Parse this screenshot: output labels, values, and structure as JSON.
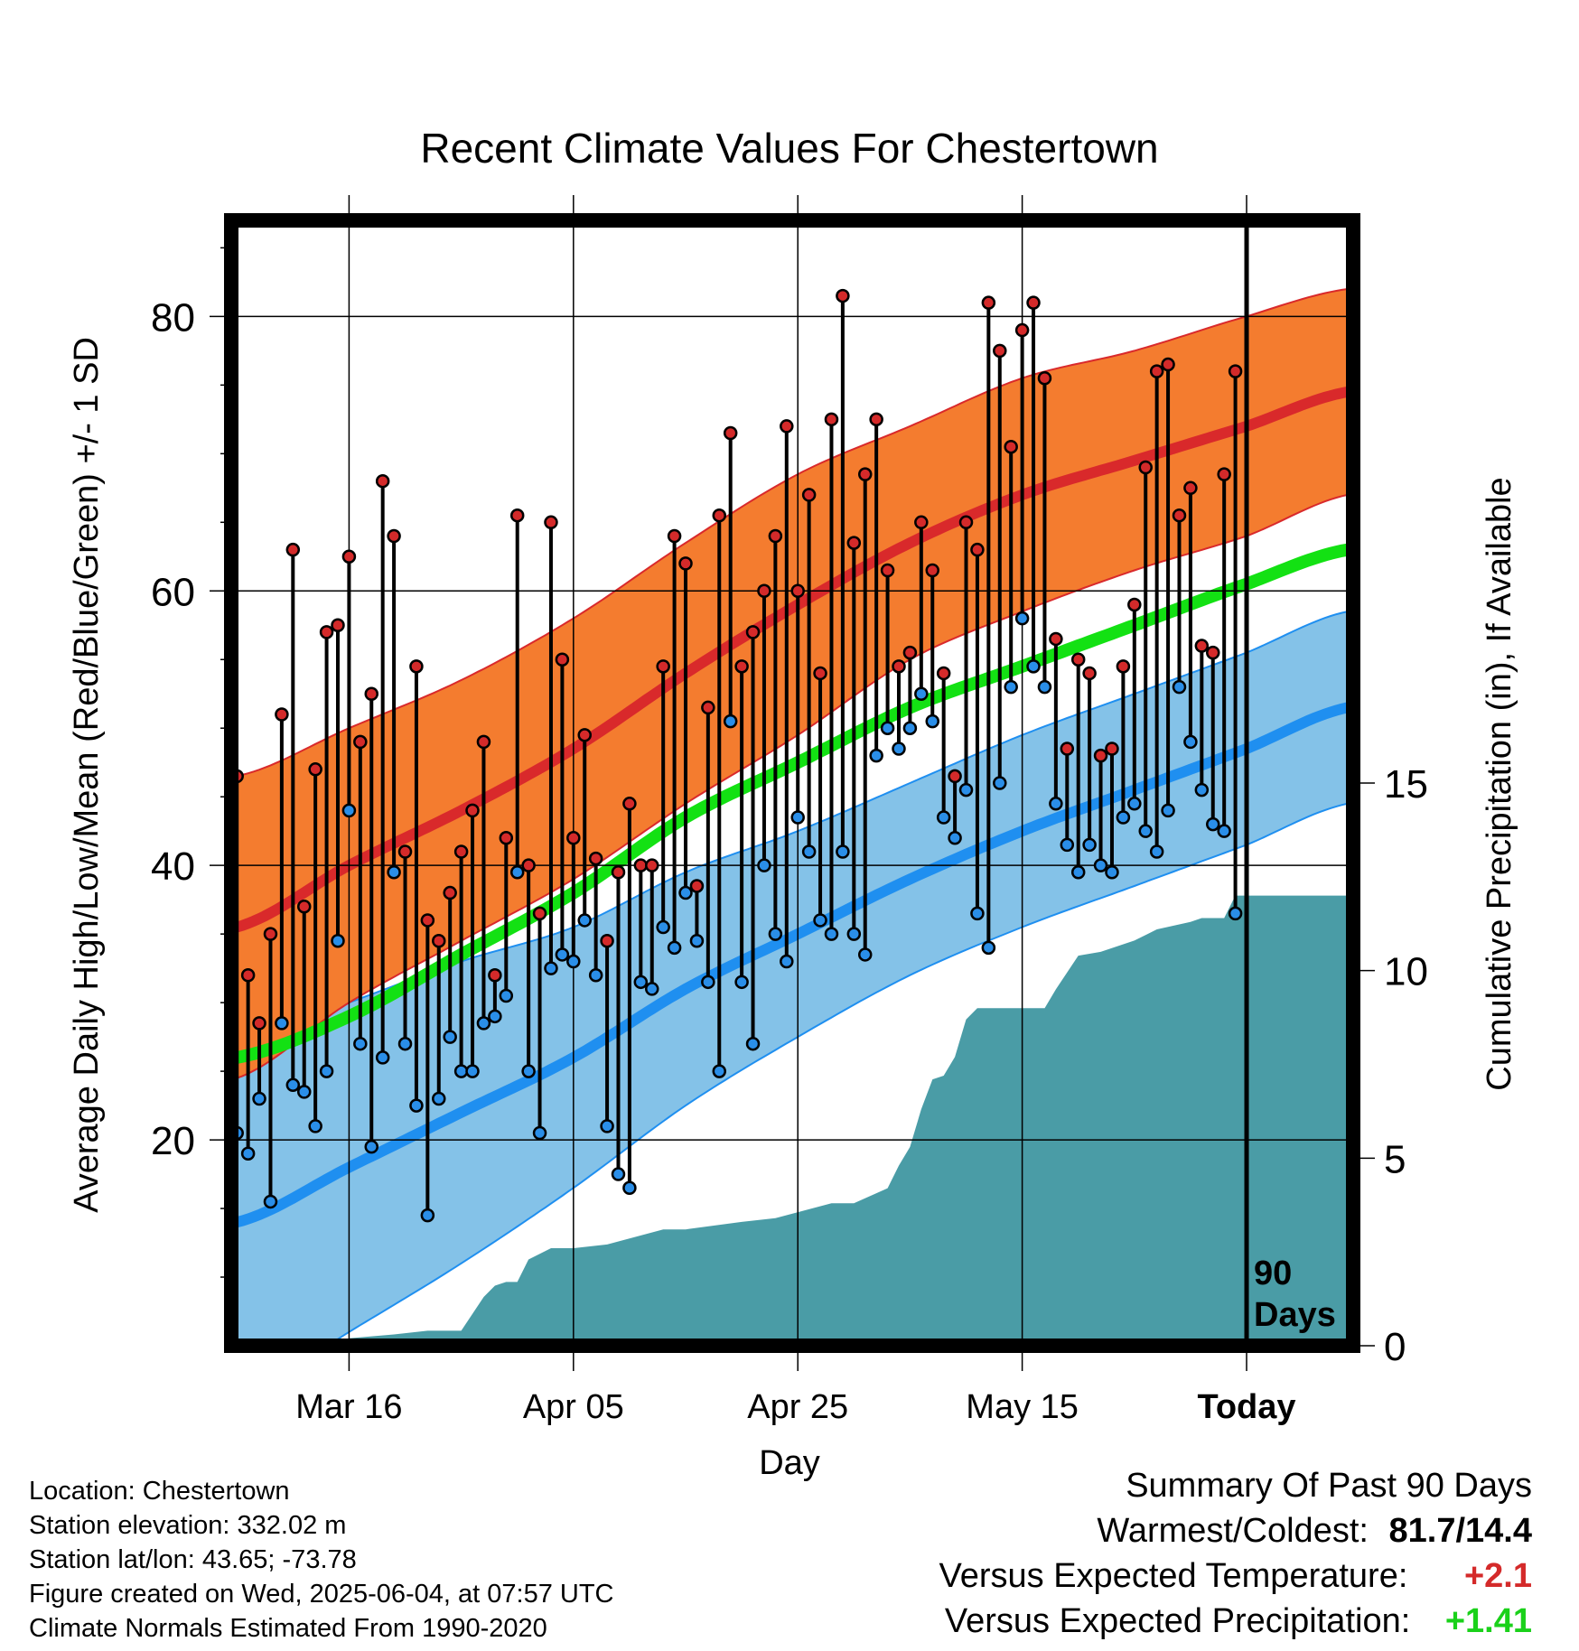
{
  "chart_data": {
    "type": "line",
    "title": "Recent Climate Values For Chestertown",
    "xlabel": "Day",
    "ylabel": "Average Daily High/Low/Mean (Red/Blue/Green) +/- 1 SD",
    "y2label": "Cumulative Precipitation (in), If Available",
    "ylim": [
      5,
      87
    ],
    "y2lim": [
      0,
      30
    ],
    "y_ticks": [
      20,
      40,
      60,
      80
    ],
    "y2_ticks": [
      0,
      5,
      10,
      15
    ],
    "x_tick_labels": [
      "Mar 16",
      "Apr 05",
      "Apr 25",
      "May 15",
      "Today"
    ],
    "x_tick_days": [
      10,
      30,
      50,
      70,
      90
    ],
    "x_range_days": [
      -0.5,
      99.5
    ],
    "today_marker_label": "90 Days",
    "grid": true,
    "colors": {
      "high_band": "#f47c2f",
      "high_mean": "#d9292b",
      "mean_line": "#13e113",
      "low_band": "#84c2e8",
      "low_mean": "#1f8ff0",
      "precip": "#4a9ca6",
      "high_dot": "#d42a2a",
      "low_dot": "#2a8ee8"
    },
    "normals": {
      "days": [
        0,
        10,
        20,
        30,
        40,
        50,
        60,
        70,
        80,
        90,
        99
      ],
      "high_mean": [
        35.5,
        40,
        44,
        48.5,
        54,
        59,
        63.5,
        67,
        69.5,
        72,
        74.5
      ],
      "high_sd": [
        11,
        10,
        9.5,
        9.5,
        9.5,
        9.5,
        8.5,
        8.5,
        8,
        8,
        7.5
      ],
      "low_mean": [
        14,
        18,
        22,
        26,
        31,
        35,
        39,
        42.5,
        45.5,
        48.5,
        51.5
      ],
      "low_sd": [
        13,
        12,
        11,
        9.5,
        8.5,
        7.5,
        7,
        7,
        7,
        7,
        7
      ],
      "daily_mean": [
        26,
        29,
        33.5,
        38,
        43.5,
        47.5,
        51.5,
        54.5,
        57.5,
        60.5,
        63
      ]
    },
    "series": [
      {
        "name": "High",
        "values": [
          46.5,
          32,
          28.5,
          35,
          51,
          63,
          37,
          47,
          57,
          57.5,
          62.5,
          49,
          52.5,
          68,
          64,
          41,
          54.5,
          36,
          34.5,
          38,
          41,
          44,
          49,
          32,
          42,
          65.5,
          40,
          36.5,
          65,
          55,
          42,
          49.5,
          40.5,
          34.5,
          39.5,
          44.5,
          40,
          40,
          54.5,
          64,
          62,
          38.5,
          51.5,
          65.5,
          71.5,
          54.5,
          57,
          60,
          64,
          72,
          60,
          67,
          54,
          72.5,
          81.5,
          63.5,
          68.5,
          72.5,
          61.5,
          54.5,
          55.5,
          65,
          61.5,
          54,
          46.5,
          65,
          63,
          81,
          77.5,
          70.5,
          79,
          81,
          75.5,
          56.5,
          48.5,
          55,
          54,
          48,
          48.5,
          54.5,
          59,
          69,
          76,
          76.5,
          65.5,
          67.5,
          56,
          55.5,
          68.5,
          76
        ],
        "unit": "F"
      },
      {
        "name": "Low",
        "values": [
          20.5,
          19,
          23,
          15.5,
          28.5,
          24,
          23.5,
          21,
          25,
          34.5,
          44,
          27,
          19.5,
          26,
          39.5,
          27,
          22.5,
          14.5,
          23,
          27.5,
          25,
          25,
          28.5,
          29,
          30.5,
          39.5,
          25,
          20.5,
          32.5,
          33.5,
          33,
          36,
          32,
          21,
          17.5,
          16.5,
          31.5,
          31,
          35.5,
          34,
          38,
          34.5,
          31.5,
          25,
          50.5,
          31.5,
          27,
          40,
          35,
          33,
          43.5,
          41,
          36,
          35,
          41,
          35,
          33.5,
          48,
          50,
          48.5,
          50,
          52.5,
          50.5,
          43.5,
          42,
          45.5,
          36.5,
          34,
          46,
          53,
          58,
          54.5,
          53,
          44.5,
          41.5,
          39.5,
          41.5,
          40,
          39.5,
          43.5,
          44.5,
          42.5,
          41,
          44,
          53,
          49,
          45.5,
          43,
          42.5,
          36.5
        ],
        "unit": "F"
      }
    ],
    "precipitation": {
      "days": [
        0,
        9,
        10,
        14,
        17,
        20,
        22,
        23,
        24,
        25,
        26,
        28,
        30,
        33,
        38,
        40,
        45,
        48,
        53,
        55,
        58,
        59,
        60,
        61,
        62,
        63,
        64,
        65,
        66,
        67,
        68,
        72,
        73,
        75,
        77,
        80,
        82,
        85,
        86,
        87,
        88,
        89,
        99
      ],
      "cumulative": [
        0,
        0,
        0.2,
        0.3,
        0.4,
        0.4,
        1.3,
        1.6,
        1.7,
        1.7,
        2.3,
        2.6,
        2.6,
        2.7,
        3.1,
        3.1,
        3.3,
        3.4,
        3.8,
        3.8,
        4.2,
        4.8,
        5.3,
        6.3,
        7.1,
        7.2,
        7.7,
        8.7,
        9.0,
        9.0,
        9.0,
        9.0,
        9.5,
        10.4,
        10.5,
        10.8,
        11.1,
        11.3,
        11.4,
        11.4,
        11.4,
        12.0,
        12.0
      ],
      "unit": "in"
    }
  },
  "footer": {
    "location": "Location: Chestertown",
    "elevation": "Station elevation: 332.02 m",
    "latlon": "Station lat/lon: 43.65; -73.78",
    "created": "Figure created on Wed, 2025-06-04, at 07:57 UTC",
    "normals": "Climate Normals Estimated From 1990-2020"
  },
  "summary": {
    "heading": "Summary Of Past 90 Days",
    "warm_cold_label": "Warmest/Coldest:",
    "warm_cold_value": "81.7/14.4",
    "temp_label": "Versus Expected Temperature:",
    "temp_value": "+2.1",
    "temp_color": "#d42a2a",
    "precip_label": "Versus Expected Precipitation:",
    "precip_value": "+1.41",
    "precip_color": "#1ad11a"
  }
}
